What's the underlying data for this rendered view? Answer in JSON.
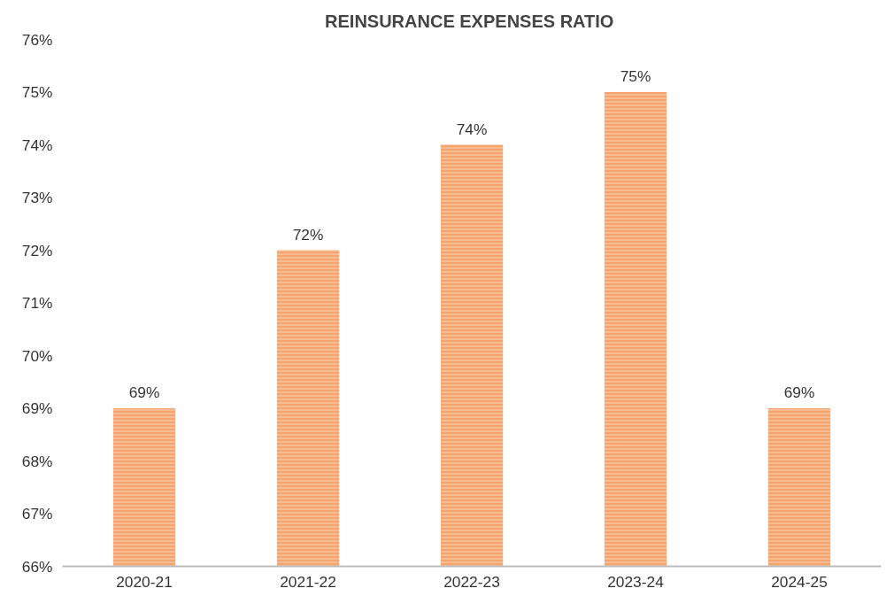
{
  "chart_data": {
    "type": "bar",
    "title": "REINSURANCE  EXPENSES RATIO",
    "categories": [
      "2020-21",
      "2021-22",
      "2022-23",
      "2023-24",
      "2024-25"
    ],
    "values": [
      69,
      72,
      74,
      75,
      69
    ],
    "value_labels": [
      "69%",
      "72%",
      "74%",
      "75%",
      "69%"
    ],
    "color": "#f4a46c",
    "ylim": [
      66,
      76
    ],
    "yticks": [
      {
        "value": 66,
        "label": "66%"
      },
      {
        "value": 67,
        "label": "67%"
      },
      {
        "value": 68,
        "label": "68%"
      },
      {
        "value": 69,
        "label": "69%"
      },
      {
        "value": 70,
        "label": "70%"
      },
      {
        "value": 71,
        "label": "71%"
      },
      {
        "value": 72,
        "label": "72%"
      },
      {
        "value": 73,
        "label": "73%"
      },
      {
        "value": 74,
        "label": "74%"
      },
      {
        "value": 75,
        "label": "75%"
      },
      {
        "value": 76,
        "label": "76%"
      }
    ],
    "grid": false
  }
}
